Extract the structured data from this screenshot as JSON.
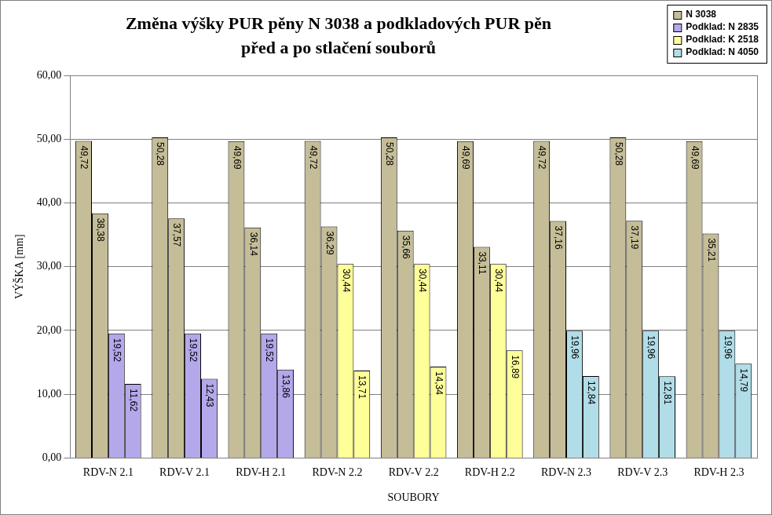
{
  "chart_data": {
    "type": "bar",
    "title": [
      "Změna výšky PUR pěny N 3038 a podkladových PUR pěn",
      "před a po stlačení souborů"
    ],
    "x_label": "SOUBORY",
    "y_label": "VÝŠKA [mm]",
    "categories": [
      "RDV-N 2.1",
      "RDV-V 2.1",
      "RDV-H 2.1",
      "RDV-N 2.2",
      "RDV-V 2.2",
      "RDV-H 2.2",
      "RDV-N 2.3",
      "RDV-V 2.3",
      "RDV-H 2.3"
    ],
    "series": [
      {
        "name": "N 3038",
        "color": "#c4bd97",
        "values": [
          49.72,
          50.28,
          49.69,
          49.72,
          50.28,
          49.69,
          49.72,
          50.28,
          49.69
        ],
        "value_labels": [
          "49,72",
          "50,28",
          "49,69",
          "49,72",
          "50,28",
          "49,69",
          "49,72",
          "50,28",
          "49,69"
        ]
      },
      {
        "name": "N 3038",
        "color": "#c4bd97",
        "values": [
          38.38,
          37.57,
          36.14,
          36.29,
          35.66,
          33.11,
          37.16,
          37.19,
          35.21
        ],
        "value_labels": [
          "38,38",
          "37,57",
          "36,14",
          "36,29",
          "35,66",
          "33,11",
          "37,16",
          "37,19",
          "35,21"
        ]
      },
      {
        "name": "Podklad: N 2835",
        "color": "#b4a7ea",
        "values": [
          19.52,
          19.52,
          19.52,
          null,
          null,
          null,
          null,
          null,
          null
        ],
        "value_labels": [
          "19,52",
          "19,52",
          "19,52",
          null,
          null,
          null,
          null,
          null,
          null
        ]
      },
      {
        "name": "Podklad: N 2835",
        "color": "#b4a7ea",
        "values": [
          11.62,
          12.43,
          13.86,
          null,
          null,
          null,
          null,
          null,
          null
        ],
        "value_labels": [
          "11,62",
          "12,43",
          "13,86",
          null,
          null,
          null,
          null,
          null,
          null
        ]
      },
      {
        "name": "Podklad: K 2518",
        "color": "#ffff99",
        "values": [
          null,
          null,
          null,
          30.44,
          30.44,
          30.44,
          null,
          null,
          null
        ],
        "value_labels": [
          null,
          null,
          null,
          "30,44",
          "30,44",
          "30,44",
          null,
          null,
          null
        ]
      },
      {
        "name": "Podklad: K 2518",
        "color": "#ffff99",
        "values": [
          null,
          null,
          null,
          13.71,
          14.34,
          16.89,
          null,
          null,
          null
        ],
        "value_labels": [
          null,
          null,
          null,
          "13,71",
          "14,34",
          "16,89",
          null,
          null,
          null
        ]
      },
      {
        "name": "Podklad: N 4050",
        "color": "#b0dde8",
        "values": [
          null,
          null,
          null,
          null,
          null,
          null,
          19.96,
          19.96,
          19.96
        ],
        "value_labels": [
          null,
          null,
          null,
          null,
          null,
          null,
          "19,96",
          "19,96",
          "19,96"
        ]
      },
      {
        "name": "Podklad: N 4050",
        "color": "#b0dde8",
        "values": [
          null,
          null,
          null,
          null,
          null,
          null,
          12.84,
          12.81,
          14.79
        ],
        "value_labels": [
          null,
          null,
          null,
          null,
          null,
          null,
          "12,84",
          "12,81",
          "14,79"
        ]
      }
    ],
    "ylim": [
      0,
      60
    ],
    "yticks": [
      {
        "value": 0,
        "label": "0,00"
      },
      {
        "value": 10,
        "label": "10,00"
      },
      {
        "value": 20,
        "label": "20,00"
      },
      {
        "value": 30,
        "label": "30,00"
      },
      {
        "value": 40,
        "label": "40,00"
      },
      {
        "value": 50,
        "label": "50,00"
      },
      {
        "value": 60,
        "label": "60,00"
      }
    ],
    "grid": true,
    "legend": "top-right",
    "data_labels": true
  }
}
